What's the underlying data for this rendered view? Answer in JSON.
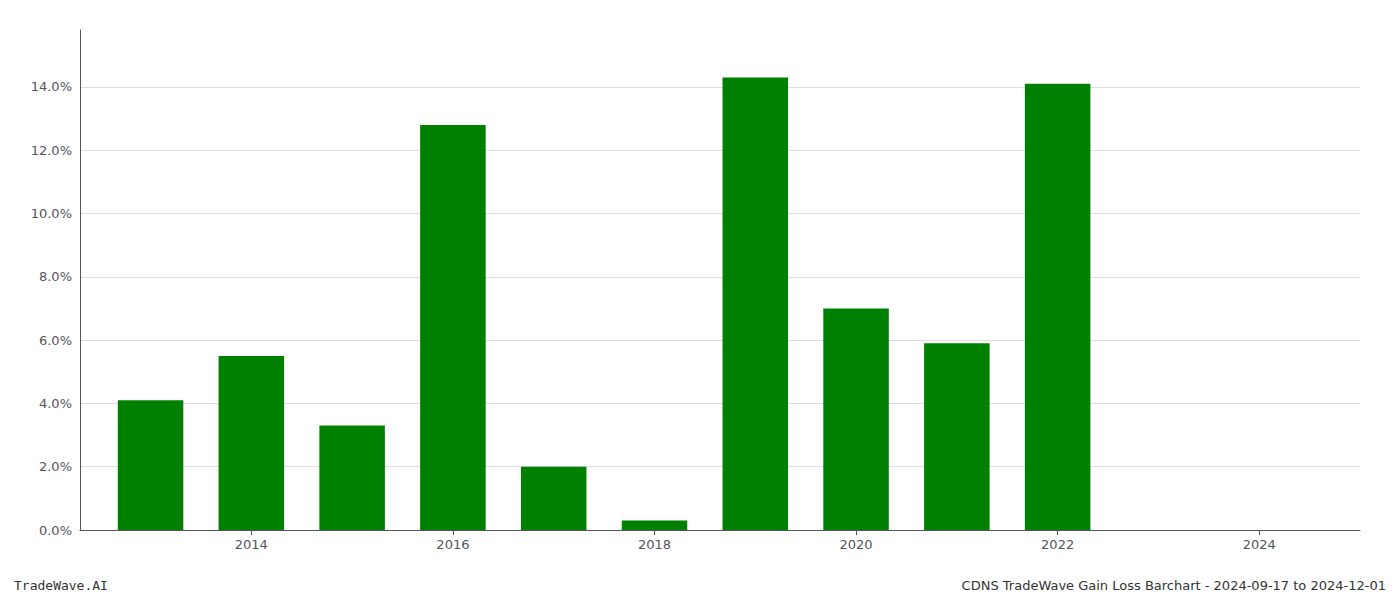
{
  "chart_data": {
    "type": "bar",
    "x": [
      2013,
      2014,
      2015,
      2016,
      2017,
      2018,
      2019,
      2020,
      2021,
      2022,
      2023
    ],
    "values": [
      0.041,
      0.055,
      0.033,
      0.128,
      0.02,
      0.003,
      0.143,
      0.07,
      0.059,
      0.141,
      0.0
    ],
    "color": "#008000",
    "xlim": [
      2012.3,
      2025.0
    ],
    "xticks": [
      2014,
      2016,
      2018,
      2020,
      2022,
      2024
    ],
    "ylim": [
      0,
      0.158
    ],
    "yticks": [
      {
        "value": 0.0,
        "label": "0.0%"
      },
      {
        "value": 0.02,
        "label": "2.0%"
      },
      {
        "value": 0.04,
        "label": "4.0%"
      },
      {
        "value": 0.06,
        "label": "6.0%"
      },
      {
        "value": 0.08,
        "label": "8.0%"
      },
      {
        "value": 0.1,
        "label": "10.0%"
      },
      {
        "value": 0.12,
        "label": "12.0%"
      },
      {
        "value": 0.14,
        "label": "14.0%"
      }
    ],
    "grid": true,
    "annotations": [
      "TradeWave.AI",
      "CDNS TradeWave Gain Loss Barchart - 2024-09-17 to 2024-12-01"
    ]
  }
}
